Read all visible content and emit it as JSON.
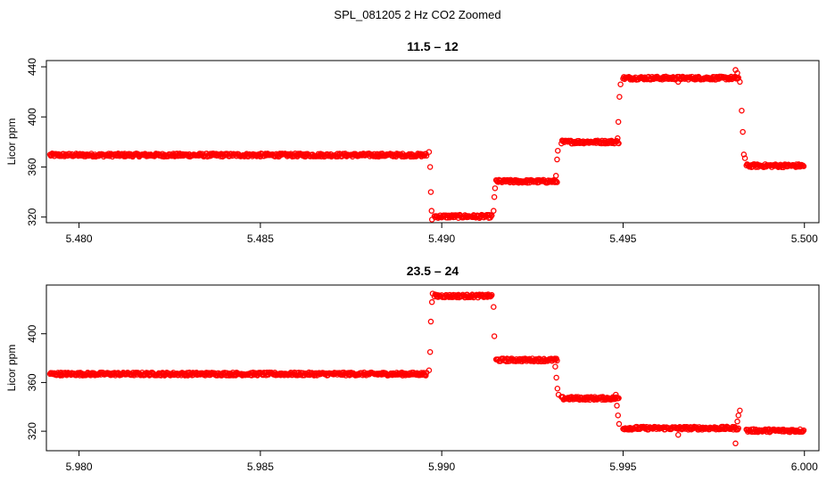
{
  "figure": {
    "title": "SPL_081205  2 Hz CO2 Zoomed"
  },
  "chart_data": [
    {
      "type": "scatter",
      "title": "11.5 – 12",
      "xlabel": "",
      "ylabel": "Licor ppm",
      "xlim": [
        5.4791,
        5.5004
      ],
      "ylim": [
        315.5,
        445
      ],
      "xticks": [
        5.48,
        5.485,
        5.49,
        5.495,
        5.5
      ],
      "xtick_labels": [
        "5.480",
        "5.485",
        "5.490",
        "5.495",
        "5.500"
      ],
      "yticks": [
        320,
        360,
        400,
        440
      ],
      "ytick_labels": [
        "320",
        "360",
        "400",
        "440"
      ],
      "grid": false,
      "marker_color": "#ff0000",
      "segments": [
        {
          "x": [
            5.4792,
            5.4896
          ],
          "y": 369.5
        },
        {
          "x": [
            5.4898,
            5.4914
          ],
          "y": 320.5
        },
        {
          "x": [
            5.4915,
            5.4932
          ],
          "y": 348.5
        },
        {
          "x": [
            5.4933,
            5.4949
          ],
          "y": 380.0
        },
        {
          "x": [
            5.495,
            5.4982
          ],
          "y": 431.0
        },
        {
          "x": [
            5.4984,
            5.5
          ],
          "y": 361.0
        }
      ],
      "transition_points": [
        {
          "x": 5.48965,
          "y": 372.0
        },
        {
          "x": 5.48968,
          "y": 360.0
        },
        {
          "x": 5.4897,
          "y": 340.0
        },
        {
          "x": 5.48972,
          "y": 325.0
        },
        {
          "x": 5.48973,
          "y": 318.0
        },
        {
          "x": 5.49143,
          "y": 325.0
        },
        {
          "x": 5.49145,
          "y": 336.0
        },
        {
          "x": 5.49147,
          "y": 343.0
        },
        {
          "x": 5.49315,
          "y": 353.0
        },
        {
          "x": 5.49318,
          "y": 366.0
        },
        {
          "x": 5.4932,
          "y": 373.0
        },
        {
          "x": 5.49485,
          "y": 383.0
        },
        {
          "x": 5.49487,
          "y": 396.0
        },
        {
          "x": 5.4949,
          "y": 416.0
        },
        {
          "x": 5.49493,
          "y": 426.0
        },
        {
          "x": 5.49652,
          "y": 428.0
        },
        {
          "x": 5.4981,
          "y": 437.5
        },
        {
          "x": 5.49815,
          "y": 435.0
        },
        {
          "x": 5.49822,
          "y": 428.0
        },
        {
          "x": 5.49827,
          "y": 405.0
        },
        {
          "x": 5.4983,
          "y": 388.0
        },
        {
          "x": 5.49833,
          "y": 370.0
        },
        {
          "x": 5.49836,
          "y": 367.0
        }
      ]
    },
    {
      "type": "scatter",
      "title": "23.5 – 24",
      "xlabel": "",
      "ylabel": "Licor ppm",
      "xlim": [
        5.9791,
        6.0004
      ],
      "ylim": [
        304,
        440
      ],
      "xticks": [
        5.98,
        5.985,
        5.99,
        5.995,
        6.0
      ],
      "xtick_labels": [
        "5.980",
        "5.985",
        "5.990",
        "5.995",
        "6.000"
      ],
      "yticks": [
        320,
        360,
        400
      ],
      "ytick_labels": [
        "320",
        "360",
        "400"
      ],
      "grid": false,
      "marker_color": "#ff0000",
      "segments": [
        {
          "x": [
            5.9792,
            5.9896
          ],
          "y": 367.0
        },
        {
          "x": [
            5.9898,
            5.9914
          ],
          "y": 431.0
        },
        {
          "x": [
            5.9915,
            5.9932
          ],
          "y": 378.5
        },
        {
          "x": [
            5.9933,
            5.9949
          ],
          "y": 347.0
        },
        {
          "x": [
            5.995,
            5.9982
          ],
          "y": 322.5
        },
        {
          "x": [
            5.9984,
            6.0
          ],
          "y": 320.5
        }
      ],
      "transition_points": [
        {
          "x": 5.98965,
          "y": 370.0
        },
        {
          "x": 5.98968,
          "y": 385.0
        },
        {
          "x": 5.9897,
          "y": 410.0
        },
        {
          "x": 5.98973,
          "y": 426.0
        },
        {
          "x": 5.98975,
          "y": 433.0
        },
        {
          "x": 5.99143,
          "y": 422.0
        },
        {
          "x": 5.99145,
          "y": 398.0
        },
        {
          "x": 5.99313,
          "y": 373.0
        },
        {
          "x": 5.99316,
          "y": 364.0
        },
        {
          "x": 5.99319,
          "y": 355.0
        },
        {
          "x": 5.99322,
          "y": 350.0
        },
        {
          "x": 5.9948,
          "y": 350.0
        },
        {
          "x": 5.99483,
          "y": 341.0
        },
        {
          "x": 5.99486,
          "y": 333.0
        },
        {
          "x": 5.99489,
          "y": 326.0
        },
        {
          "x": 5.99652,
          "y": 317.0
        },
        {
          "x": 5.9981,
          "y": 310.0
        },
        {
          "x": 5.99815,
          "y": 328.0
        },
        {
          "x": 5.99818,
          "y": 333.0
        },
        {
          "x": 5.99822,
          "y": 337.0
        }
      ]
    }
  ]
}
